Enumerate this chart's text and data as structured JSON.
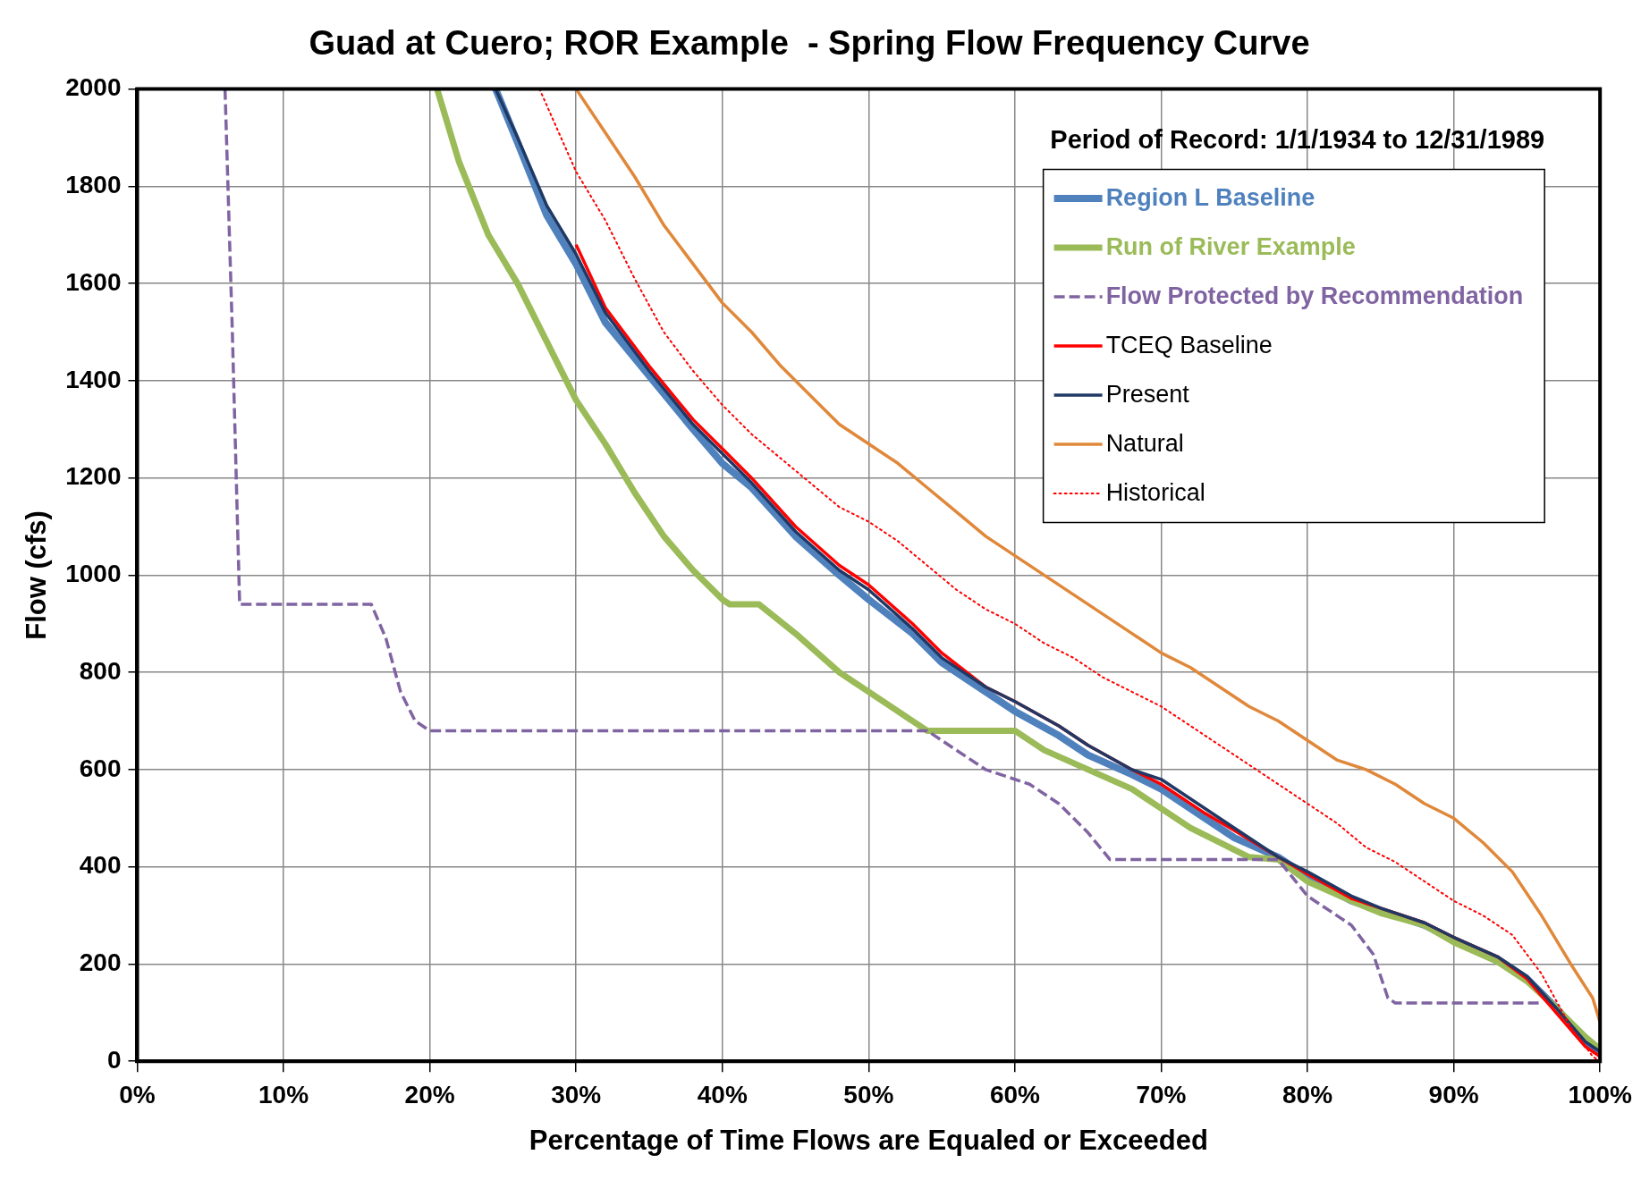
{
  "chart_data": {
    "type": "line",
    "title": "Guad at Cuero; ROR Example  - Spring Flow Frequency Curve",
    "xlabel": "Percentage of Time Flows are Equaled or Exceeded",
    "ylabel": "Flow (cfs)",
    "legend_title": "Period of Record: 1/1/1934 to 12/31/1989",
    "legend": "top right",
    "grid": true,
    "marker": "none",
    "xlim": [
      0,
      100
    ],
    "xticks": [
      {
        "value": 0,
        "label": "0%"
      },
      {
        "value": 10,
        "label": "10%"
      },
      {
        "value": 20,
        "label": "20%"
      },
      {
        "value": 30,
        "label": "30%"
      },
      {
        "value": 40,
        "label": "40%"
      },
      {
        "value": 50,
        "label": "50%"
      },
      {
        "value": 60,
        "label": "60%"
      },
      {
        "value": 70,
        "label": "70%"
      },
      {
        "value": 80,
        "label": "80%"
      },
      {
        "value": 90,
        "label": "90%"
      },
      {
        "value": 100,
        "label": "100%"
      }
    ],
    "ylim": [
      0,
      2000
    ],
    "yticks": [
      0,
      200,
      400,
      600,
      800,
      1000,
      1200,
      1400,
      1600,
      1800,
      2000
    ],
    "series": [
      {
        "name": "Region L Baseline",
        "color": "#4f81bd",
        "line_style": "solid",
        "x": [
          24.5,
          26,
          28,
          30,
          32,
          35,
          38,
          40,
          42,
          45,
          48,
          50,
          53,
          55,
          58,
          60,
          63,
          65,
          68,
          70,
          73,
          75,
          78,
          80,
          83,
          85,
          88,
          90,
          93,
          95,
          97,
          99,
          100
        ],
        "values": [
          2000,
          1890,
          1740,
          1640,
          1520,
          1410,
          1300,
          1230,
          1180,
          1080,
          1000,
          950,
          880,
          820,
          760,
          720,
          670,
          630,
          590,
          560,
          500,
          460,
          420,
          380,
          330,
          310,
          280,
          250,
          210,
          170,
          110,
          40,
          20
        ]
      },
      {
        "name": "Run of River Example",
        "color": "#9bbb59",
        "line_style": "solid",
        "x": [
          20.5,
          22,
          24,
          26,
          28,
          30,
          32,
          34,
          36,
          38,
          40,
          40.5,
          42.5,
          45,
          48,
          50,
          52,
          54,
          60,
          62,
          65,
          68,
          70,
          72,
          74,
          76,
          78,
          80,
          83,
          85,
          88,
          90,
          93,
          95,
          97,
          99,
          100
        ],
        "values": [
          2000,
          1850,
          1700,
          1600,
          1480,
          1360,
          1270,
          1170,
          1080,
          1010,
          950,
          940,
          940,
          880,
          800,
          760,
          720,
          680,
          680,
          640,
          600,
          560,
          520,
          480,
          450,
          420,
          415,
          370,
          330,
          305,
          280,
          245,
          205,
          165,
          110,
          50,
          25
        ]
      },
      {
        "name": "Flow Protected by Recommendation",
        "color": "#8064a2",
        "line_style": "dashed",
        "x": [
          6,
          6.5,
          7,
          16,
          17,
          18,
          19,
          20,
          54,
          56,
          58,
          61,
          63,
          65,
          66.5,
          78,
          80,
          83,
          84.5,
          85.5,
          86,
          96
        ],
        "values": [
          2000,
          1500,
          940,
          940,
          870,
          760,
          700,
          680,
          680,
          640,
          600,
          570,
          530,
          470,
          415,
          415,
          340,
          280,
          220,
          130,
          120,
          120
        ]
      },
      {
        "name": "TCEQ Baseline",
        "color": "#ff0000",
        "line_style": "solid",
        "x": [
          30,
          32,
          35,
          38,
          40,
          42,
          45,
          48,
          50,
          53,
          55,
          58,
          60,
          63,
          65,
          68,
          70,
          73,
          75,
          78,
          80,
          83,
          85,
          88,
          90,
          93,
          95,
          97,
          99,
          100
        ],
        "values": [
          1680,
          1550,
          1430,
          1320,
          1260,
          1200,
          1100,
          1020,
          980,
          900,
          840,
          770,
          740,
          690,
          650,
          600,
          570,
          510,
          475,
          420,
          385,
          335,
          315,
          285,
          255,
          215,
          170,
          100,
          30,
          10
        ]
      },
      {
        "name": "Present",
        "color": "#1f3864",
        "line_style": "solid",
        "x": [
          24.5,
          26,
          28,
          30,
          32,
          35,
          38,
          40,
          42,
          45,
          48,
          50,
          53,
          55,
          58,
          60,
          63,
          65,
          68,
          70,
          73,
          75,
          78,
          80,
          83,
          85,
          88,
          90,
          93,
          95,
          97,
          99,
          100
        ],
        "values": [
          2000,
          1900,
          1760,
          1660,
          1540,
          1420,
          1310,
          1250,
          1190,
          1090,
          1010,
          970,
          890,
          830,
          770,
          740,
          690,
          650,
          600,
          580,
          520,
          480,
          420,
          390,
          340,
          315,
          285,
          255,
          215,
          175,
          110,
          40,
          20
        ]
      },
      {
        "name": "Natural",
        "color": "#e0883a",
        "line_style": "solid",
        "x": [
          30,
          32,
          34,
          36,
          38,
          40,
          42,
          44,
          46,
          48,
          50,
          52,
          54,
          56,
          58,
          60,
          62,
          64,
          66,
          68,
          70,
          72,
          74,
          76,
          78,
          80,
          82,
          84,
          86,
          88,
          90,
          92,
          94,
          96,
          98,
          99.5,
          100
        ],
        "values": [
          2000,
          1910,
          1820,
          1720,
          1640,
          1560,
          1500,
          1430,
          1370,
          1310,
          1270,
          1230,
          1180,
          1130,
          1080,
          1040,
          1000,
          960,
          920,
          880,
          840,
          810,
          770,
          730,
          700,
          660,
          620,
          600,
          570,
          530,
          500,
          450,
          390,
          300,
          200,
          130,
          80
        ]
      },
      {
        "name": "Historical",
        "color": "#ff0000",
        "line_style": "dotted",
        "x": [
          27.5,
          30,
          32,
          34,
          36,
          38,
          40,
          42,
          44,
          46,
          48,
          50,
          52,
          54,
          56,
          58,
          60,
          62,
          64,
          66,
          68,
          70,
          72,
          74,
          76,
          78,
          80,
          82,
          84,
          86,
          88,
          90,
          92,
          94,
          96,
          98,
          99.5,
          100
        ],
        "values": [
          2000,
          1830,
          1730,
          1610,
          1500,
          1420,
          1350,
          1290,
          1240,
          1190,
          1140,
          1110,
          1070,
          1020,
          970,
          930,
          900,
          860,
          830,
          790,
          760,
          730,
          690,
          650,
          610,
          570,
          530,
          490,
          440,
          410,
          370,
          330,
          300,
          260,
          180,
          70,
          10,
          0
        ]
      }
    ]
  }
}
